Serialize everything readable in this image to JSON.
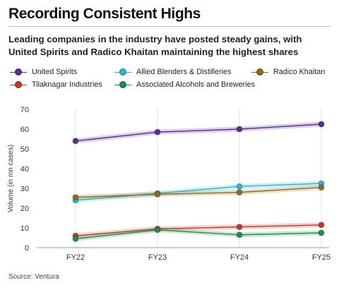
{
  "header": {
    "title": "Recording Consistent Highs",
    "subtitle": "Leading companies in the industry have posted steady gains, with United Spirits and Radico Khaitan maintaining the highest shares"
  },
  "chart_data": {
    "type": "line",
    "title": "",
    "xlabel": "",
    "ylabel": "Volume (in mn cases)",
    "categories": [
      "FY22",
      "FY23",
      "FY24",
      "FY25"
    ],
    "ylim": [
      0,
      70
    ],
    "yticks": [
      "0",
      "10",
      "20",
      "30",
      "40",
      "50",
      "60",
      "70"
    ],
    "grid": "vertical",
    "legend_position": "top",
    "series": [
      {
        "name": "United Spirits",
        "color": "#5b2d8e",
        "values": [
          54,
          58.5,
          60,
          62.5
        ]
      },
      {
        "name": "Allied Blenders & Distilleries",
        "color": "#2bb7c9",
        "values": [
          24,
          27.5,
          31,
          32.5
        ]
      },
      {
        "name": "Radico Khaitan",
        "color": "#8c6d1f",
        "values": [
          25.5,
          27,
          28,
          30.5
        ]
      },
      {
        "name": "Tilaknagar Industries",
        "color": "#c0392b",
        "values": [
          6,
          9.5,
          10.5,
          11.5
        ]
      },
      {
        "name": "Associated Alcohols and Breweries",
        "color": "#1e8c4e",
        "values": [
          4.5,
          9,
          6.5,
          7.5
        ]
      }
    ]
  },
  "footer": {
    "source": "Source: Ventura"
  }
}
